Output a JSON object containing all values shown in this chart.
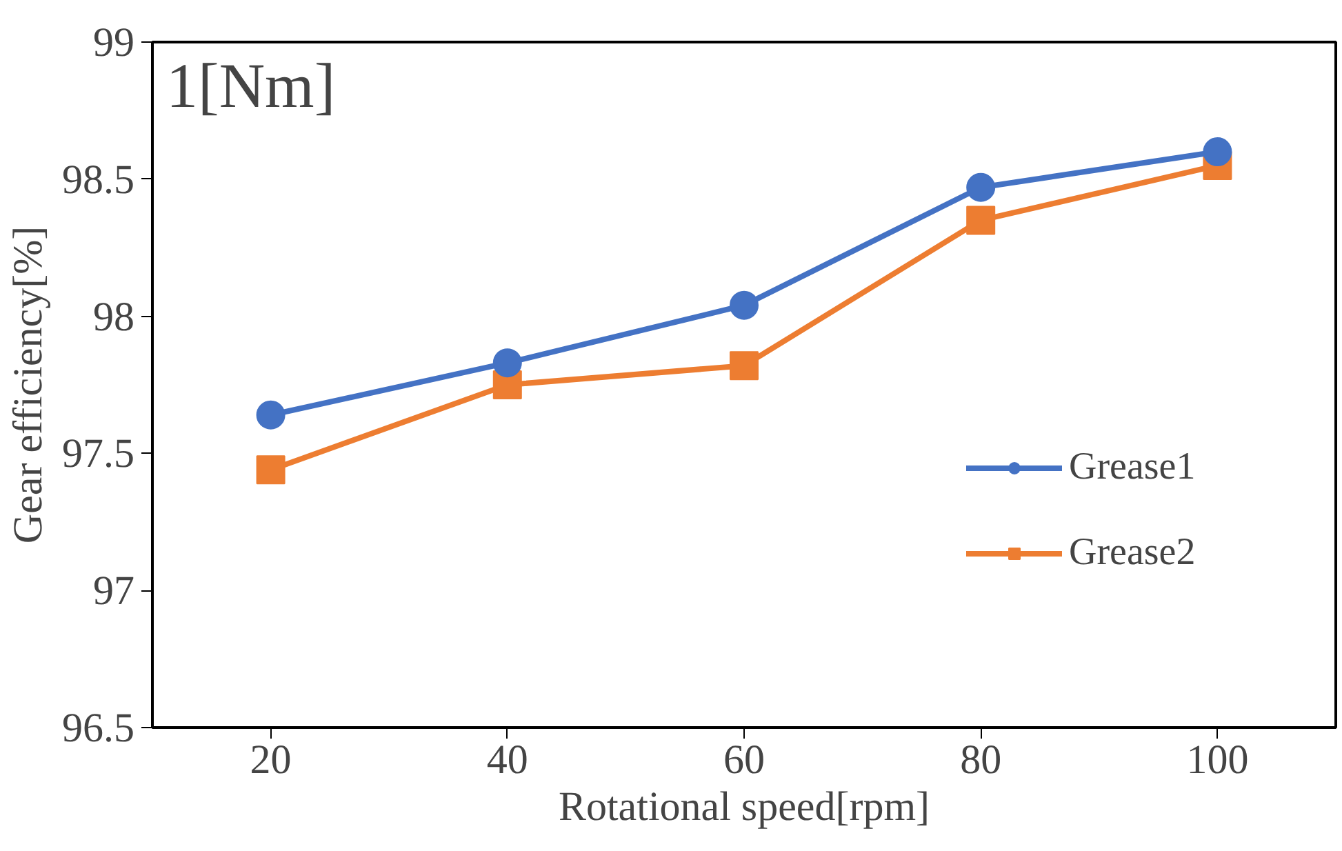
{
  "chart_data": {
    "type": "line",
    "xlabel": "Rotational speed[rpm]",
    "ylabel": "Gear efficiency[%]",
    "annotations": [
      "1[Nm]"
    ],
    "x": [
      20,
      40,
      60,
      80,
      100
    ],
    "xlim": [
      10,
      110
    ],
    "xticks": [
      20,
      40,
      60,
      80,
      100
    ],
    "ylim": [
      96.5,
      99
    ],
    "yticks": [
      96.5,
      97,
      97.5,
      98,
      98.5,
      99
    ],
    "grid": false,
    "legend": "right",
    "line_style": "solid",
    "series": [
      {
        "name": "Grease1",
        "color": "#4472c4",
        "marker": "circle",
        "values": [
          97.64,
          97.83,
          98.04,
          98.47,
          98.6
        ]
      },
      {
        "name": "Grease2",
        "color": "#ed7d31",
        "marker": "square",
        "values": [
          97.44,
          97.75,
          97.82,
          98.35,
          98.55
        ]
      }
    ]
  }
}
